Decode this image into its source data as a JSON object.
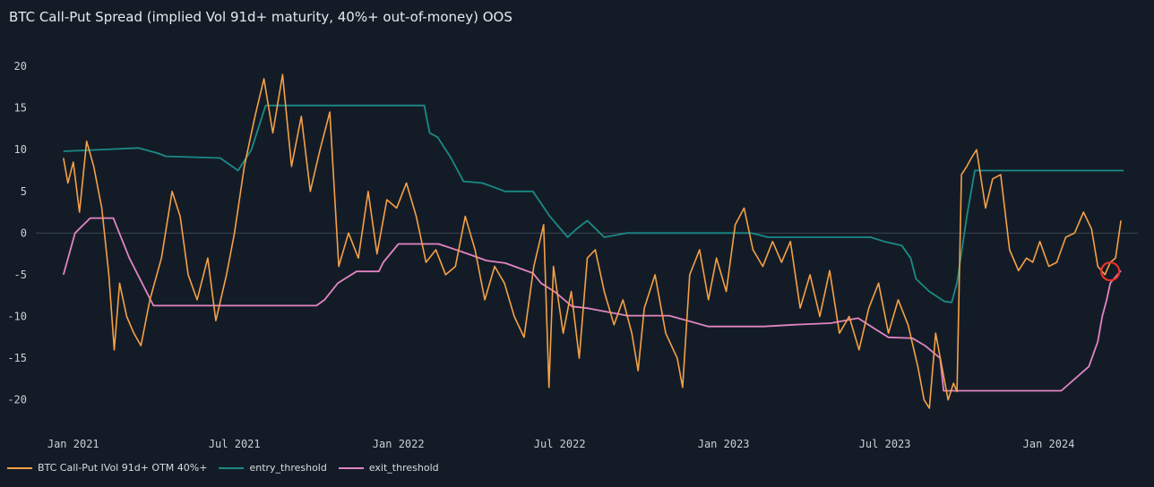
{
  "colors": {
    "background": "#131c26",
    "grid": "#3a4350",
    "btc": "#f5a047",
    "entry": "#1b8a86",
    "exit": "#e184c4",
    "marker": "#e8322a"
  },
  "chart_data": {
    "type": "line",
    "title": "BTC Call-Put Spread (implied Vol 91d+ maturity, 40%+ out-of-money) OOS",
    "xlabel": "",
    "ylabel": "",
    "x_range": [
      "2020-11-20",
      "2024-04-10"
    ],
    "ylim": [
      -22.5,
      21.5
    ],
    "y_ticks": [
      20,
      15,
      10,
      5,
      0,
      -5,
      -10,
      -15,
      -20
    ],
    "x_ticks": [
      {
        "date": "2021-01-01",
        "label": "Jan 2021"
      },
      {
        "date": "2021-07-01",
        "label": "Jul 2021"
      },
      {
        "date": "2022-01-01",
        "label": "Jan 2022"
      },
      {
        "date": "2022-07-01",
        "label": "Jul 2022"
      },
      {
        "date": "2023-01-01",
        "label": "Jan 2023"
      },
      {
        "date": "2023-07-01",
        "label": "Jul 2023"
      },
      {
        "date": "2024-01-01",
        "label": "Jan 2024"
      }
    ],
    "zero_line": true,
    "legend_position": "bottom-left",
    "series": [
      {
        "name": "BTC Call-Put IVol 91d+ OTM 40%+",
        "x": [
          "2020-12-21",
          "2020-12-26",
          "2021-01-01",
          "2021-01-08",
          "2021-01-16",
          "2021-01-24",
          "2021-02-02",
          "2021-02-10",
          "2021-02-16",
          "2021-02-22",
          "2021-03-02",
          "2021-03-10",
          "2021-03-18",
          "2021-03-28",
          "2021-04-10",
          "2021-04-22",
          "2021-05-01",
          "2021-05-10",
          "2021-05-20",
          "2021-06-01",
          "2021-06-10",
          "2021-06-22",
          "2021-07-01",
          "2021-07-12",
          "2021-07-24",
          "2021-08-03",
          "2021-08-13",
          "2021-08-24",
          "2021-09-03",
          "2021-09-14",
          "2021-09-24",
          "2021-10-05",
          "2021-10-16",
          "2021-10-26",
          "2021-11-06",
          "2021-11-17",
          "2021-11-28",
          "2021-12-08",
          "2021-12-19",
          "2021-12-30",
          "2022-01-10",
          "2022-01-21",
          "2022-02-01",
          "2022-02-12",
          "2022-02-23",
          "2022-03-06",
          "2022-03-17",
          "2022-03-28",
          "2022-04-08",
          "2022-04-19",
          "2022-04-30",
          "2022-05-11",
          "2022-05-22",
          "2022-06-02",
          "2022-06-13",
          "2022-06-19",
          "2022-06-24",
          "2022-07-05",
          "2022-07-14",
          "2022-07-23",
          "2022-08-01",
          "2022-08-10",
          "2022-08-20",
          "2022-08-31",
          "2022-09-10",
          "2022-09-20",
          "2022-09-27",
          "2022-10-04",
          "2022-10-16",
          "2022-10-28",
          "2022-11-10",
          "2022-11-16",
          "2022-11-24",
          "2022-12-05",
          "2022-12-15",
          "2022-12-24",
          "2023-01-04",
          "2023-01-14",
          "2023-01-24",
          "2023-02-03",
          "2023-02-14",
          "2023-02-25",
          "2023-03-07",
          "2023-03-17",
          "2023-03-28",
          "2023-04-08",
          "2023-04-19",
          "2023-04-30",
          "2023-05-11",
          "2023-05-22",
          "2023-06-02",
          "2023-06-13",
          "2023-06-24",
          "2023-07-05",
          "2023-07-16",
          "2023-07-27",
          "2023-08-07",
          "2023-08-14",
          "2023-08-20",
          "2023-08-27",
          "2023-09-03",
          "2023-09-10",
          "2023-09-16",
          "2023-09-20",
          "2023-09-25",
          "2023-10-01",
          "2023-10-06",
          "2023-10-12",
          "2023-10-17",
          "2023-10-22",
          "2023-10-30",
          "2023-11-08",
          "2023-11-18",
          "2023-11-28",
          "2023-12-07",
          "2023-12-14",
          "2023-12-22",
          "2024-01-01",
          "2024-01-10",
          "2024-01-20",
          "2024-01-30",
          "2024-02-09",
          "2024-02-18",
          "2024-02-25",
          "2024-03-04",
          "2024-03-10",
          "2024-03-16",
          "2024-03-22"
        ],
        "values": [
          9.0,
          6.0,
          8.5,
          2.5,
          11.0,
          8.0,
          3.0,
          -5.0,
          -14.0,
          -6.0,
          -10.0,
          -12.0,
          -13.5,
          -8.0,
          -3.0,
          5.0,
          2.0,
          -5.0,
          -8.0,
          -3.0,
          -10.5,
          -5.0,
          0.0,
          8.0,
          14.0,
          18.5,
          12.0,
          19.0,
          8.0,
          14.0,
          5.0,
          10.0,
          14.5,
          -4.0,
          0.0,
          -3.0,
          5.0,
          -2.5,
          4.0,
          3.0,
          6.0,
          2.0,
          -3.5,
          -2.0,
          -5.0,
          -4.0,
          2.0,
          -2.0,
          -8.0,
          -4.0,
          -6.0,
          -10.0,
          -12.5,
          -4.0,
          1.0,
          -18.5,
          -4.0,
          -12.0,
          -7.0,
          -15.0,
          -3.0,
          -2.0,
          -7.0,
          -11.0,
          -8.0,
          -12.0,
          -16.5,
          -9.0,
          -5.0,
          -12.0,
          -15.0,
          -18.5,
          -5.0,
          -2.0,
          -8.0,
          -3.0,
          -7.0,
          1.0,
          3.0,
          -2.0,
          -4.0,
          -1.0,
          -3.5,
          -1.0,
          -9.0,
          -5.0,
          -10.0,
          -4.5,
          -12.0,
          -10.0,
          -14.0,
          -9.0,
          -6.0,
          -12.0,
          -8.0,
          -11.0,
          -16.0,
          -20.0,
          -21.0,
          -12.0,
          -16.0,
          -20.0,
          -18.0,
          -19.0,
          7.0,
          8.0,
          9.0,
          10.0,
          6.5,
          3.0,
          6.5,
          7.0,
          -2.0,
          -4.5,
          -3.0,
          -3.5,
          -1.0,
          -4.0,
          -3.5,
          -0.5,
          0.0,
          2.5,
          0.5,
          -4.0,
          -5.0,
          -3.5,
          -3.0,
          1.5
        ]
      },
      {
        "name": "entry_threshold",
        "x": [
          "2020-12-21",
          "2021-03-15",
          "2021-04-05",
          "2021-04-15",
          "2021-06-15",
          "2021-07-05",
          "2021-07-20",
          "2021-08-05",
          "2021-11-20",
          "2022-01-30",
          "2022-02-05",
          "2022-02-14",
          "2022-03-01",
          "2022-03-15",
          "2022-04-05",
          "2022-05-01",
          "2022-06-01",
          "2022-06-20",
          "2022-07-10",
          "2022-07-20",
          "2022-08-01",
          "2022-08-20",
          "2022-09-15",
          "2022-10-20",
          "2022-12-15",
          "2023-01-20",
          "2023-02-01",
          "2023-02-20",
          "2023-04-01",
          "2023-06-15",
          "2023-06-30",
          "2023-07-20",
          "2023-07-30",
          "2023-08-05",
          "2023-08-20",
          "2023-09-06",
          "2023-09-14",
          "2023-09-20",
          "2023-10-01",
          "2023-10-10",
          "2024-03-25"
        ],
        "values": [
          9.8,
          10.2,
          9.6,
          9.2,
          9.0,
          7.5,
          10.0,
          15.3,
          15.3,
          15.3,
          12.0,
          11.5,
          9.0,
          6.2,
          6.0,
          5.0,
          5.0,
          2.0,
          -0.5,
          0.5,
          1.5,
          -0.5,
          0.0,
          0.0,
          0.0,
          0.0,
          0.0,
          -0.5,
          -0.5,
          -0.5,
          -1.0,
          -1.5,
          -3.0,
          -5.5,
          -7.0,
          -8.2,
          -8.3,
          -6.0,
          2.0,
          7.5,
          7.5
        ]
      },
      {
        "name": "exit_threshold",
        "x": [
          "2020-12-21",
          "2021-01-03",
          "2021-01-20",
          "2021-02-15",
          "2021-03-05",
          "2021-04-01",
          "2021-05-01",
          "2021-06-01",
          "2021-07-01",
          "2021-08-01",
          "2021-09-01",
          "2021-10-01",
          "2021-10-10",
          "2021-10-25",
          "2021-11-15",
          "2021-12-10",
          "2021-12-15",
          "2022-01-01",
          "2022-02-15",
          "2022-03-01",
          "2022-03-20",
          "2022-04-10",
          "2022-05-01",
          "2022-06-01",
          "2022-06-10",
          "2022-06-25",
          "2022-07-15",
          "2022-08-01",
          "2022-09-15",
          "2022-10-01",
          "2022-11-01",
          "2022-12-15",
          "2023-02-15",
          "2023-03-20",
          "2023-05-01",
          "2023-06-01",
          "2023-06-20",
          "2023-07-05",
          "2023-08-01",
          "2023-08-15",
          "2023-09-01",
          "2023-09-05",
          "2023-11-01",
          "2024-01-15",
          "2024-02-15",
          "2024-02-25",
          "2024-03-01",
          "2024-03-06",
          "2024-03-10",
          "2024-03-22"
        ],
        "values": [
          -5.0,
          0.0,
          1.8,
          1.8,
          -3.0,
          -8.7,
          -8.7,
          -8.7,
          -8.7,
          -8.7,
          -8.7,
          -8.7,
          -8.0,
          -6.0,
          -4.6,
          -4.6,
          -3.5,
          -1.3,
          -1.3,
          -1.8,
          -2.5,
          -3.3,
          -3.6,
          -4.8,
          -6.0,
          -7.0,
          -8.8,
          -9.0,
          -9.9,
          -9.9,
          -9.9,
          -11.2,
          -11.2,
          -11.0,
          -10.8,
          -10.2,
          -11.5,
          -12.5,
          -12.6,
          -13.5,
          -15.0,
          -18.9,
          -18.9,
          -18.9,
          -16.0,
          -13.0,
          -10.0,
          -8.0,
          -6.0,
          -4.5
        ]
      }
    ],
    "annotations": [
      {
        "type": "circle",
        "x": "2024-03-10",
        "y": -4.6
      }
    ]
  }
}
